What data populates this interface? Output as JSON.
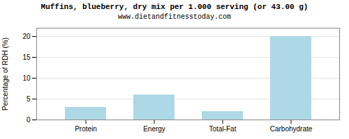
{
  "chart_data": {
    "type": "bar",
    "title": "Muffins, blueberry, dry mix per 1.000 serving (or 43.00 g)",
    "subtitle": "www.dietandfitnesstoday.com",
    "categories": [
      "Protein",
      "Energy",
      "Total-Fat",
      "Carbohydrate"
    ],
    "values": [
      3.0,
      6.0,
      2.0,
      20.0
    ],
    "color": "#add8e6",
    "ylabel": "Percentage of RDH (%)",
    "ylim": [
      0,
      22
    ],
    "yticks": [
      0,
      5,
      10,
      15,
      20
    ],
    "grid": true
  }
}
